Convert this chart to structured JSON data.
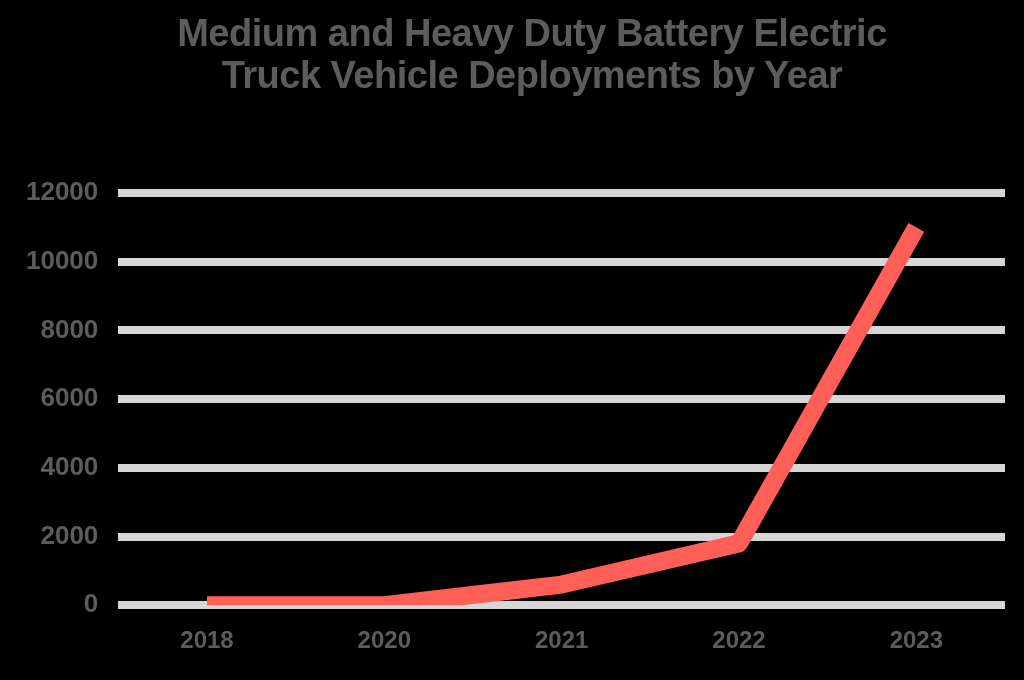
{
  "chart_data": {
    "type": "line",
    "title": "Medium and Heavy Duty Battery Electric Truck Vehicle Deployments by Year",
    "categories": [
      "2018",
      "2020",
      "2021",
      "2022",
      "2023"
    ],
    "values": [
      0,
      0,
      600,
      1800,
      11000
    ],
    "color": "#ff5f57",
    "ylim": [
      0,
      12000
    ],
    "yticks": [
      0,
      2000,
      4000,
      6000,
      8000,
      10000,
      12000
    ],
    "grid": "y",
    "legend": false,
    "marker": "none",
    "line_style": "solid"
  }
}
